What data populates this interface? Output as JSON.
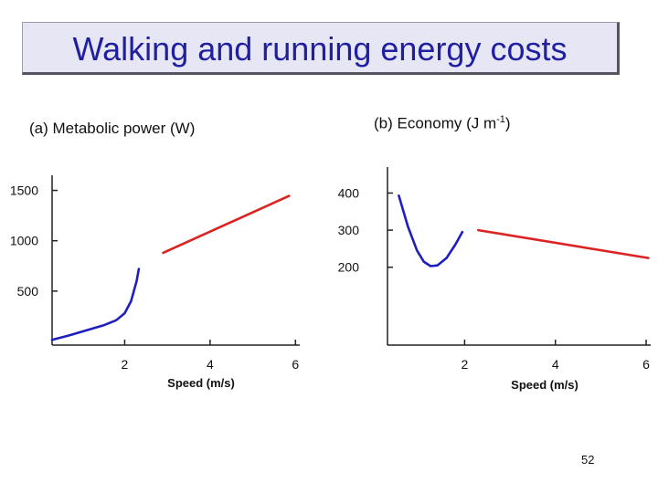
{
  "title": "Walking and running energy costs",
  "page_number": "52",
  "chart_data": [
    {
      "type": "line",
      "title": "(a) Metabolic power (W)",
      "xlabel": "Speed (m/s)",
      "ylabel": "",
      "xlim": [
        0.3,
        6.1
      ],
      "ylim": [
        0,
        1650
      ],
      "x_ticks": [
        2,
        4,
        6
      ],
      "y_ticks": [
        500,
        1000,
        1500
      ],
      "grid": false,
      "series": [
        {
          "color": "#1f1fc0",
          "points": [
            [
              0.3,
              15
            ],
            [
              0.7,
              60
            ],
            [
              1.1,
              110
            ],
            [
              1.5,
              160
            ],
            [
              1.8,
              210
            ],
            [
              2.0,
              280
            ],
            [
              2.15,
              400
            ],
            [
              2.28,
              600
            ],
            [
              2.33,
              720
            ]
          ]
        },
        {
          "color": "#dd2222",
          "points": [
            [
              2.9,
              880
            ],
            [
              5.85,
              1445
            ]
          ]
        }
      ]
    },
    {
      "type": "line",
      "title": "(b) Economy (J m",
      "title_sup": "-1",
      "title_end": ")",
      "xlabel": "Speed (m/s)",
      "ylabel": "",
      "xlim": [
        0.3,
        6.1
      ],
      "ylim": [
        0,
        470
      ],
      "x_ticks": [
        2,
        4,
        6
      ],
      "y_ticks": [
        200,
        300,
        400
      ],
      "grid": false,
      "series": [
        {
          "color": "#1f1fc0",
          "points": [
            [
              0.55,
              393
            ],
            [
              0.75,
              310
            ],
            [
              0.95,
              245
            ],
            [
              1.1,
              215
            ],
            [
              1.25,
              203
            ],
            [
              1.4,
              205
            ],
            [
              1.6,
              225
            ],
            [
              1.8,
              262
            ],
            [
              1.95,
              295
            ]
          ]
        },
        {
          "color": "#dd2222",
          "points": [
            [
              2.3,
              300
            ],
            [
              6.05,
              225
            ]
          ]
        }
      ]
    }
  ]
}
